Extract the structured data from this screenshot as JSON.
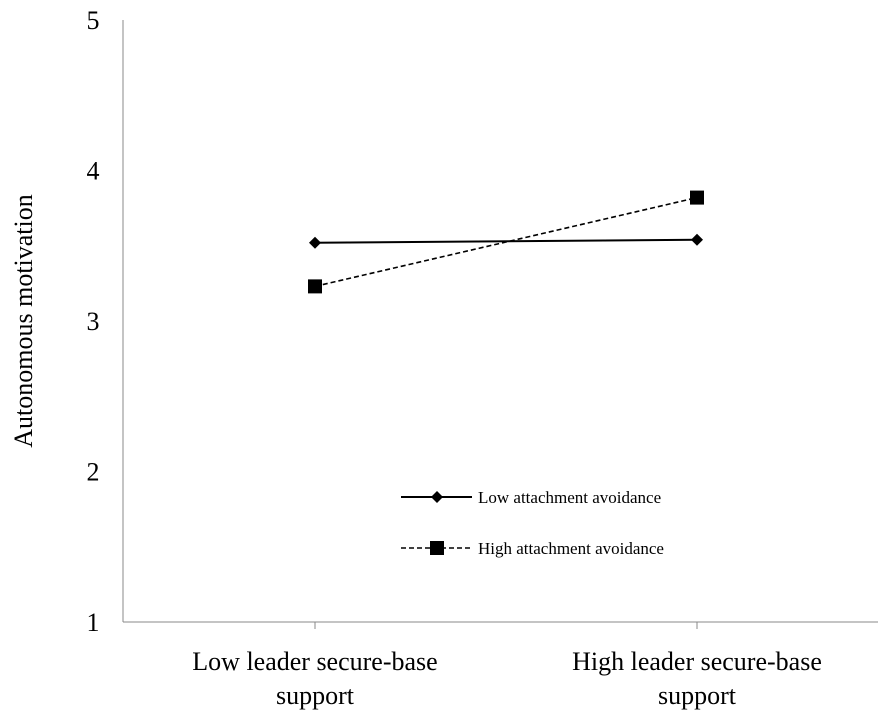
{
  "chart_data": {
    "type": "line",
    "title": "",
    "xlabel": "",
    "ylabel": "Autonomous motivation",
    "ylim": [
      1,
      5
    ],
    "yticks": [
      "1",
      "2",
      "3",
      "4",
      "5"
    ],
    "categories": [
      [
        "Low leader secure-base",
        "support"
      ],
      [
        "High leader secure-base",
        "support"
      ]
    ],
    "series": [
      {
        "name": "Low attachment avoidance",
        "values": [
          3.52,
          3.54
        ],
        "line_style": "solid",
        "marker": "diamond",
        "color": "#000000"
      },
      {
        "name": "High attachment avoidance",
        "values": [
          3.23,
          3.82
        ],
        "line_style": "dashed",
        "marker": "square",
        "color": "#000000"
      }
    ],
    "legend_position": "center-bottom",
    "grid": false
  }
}
